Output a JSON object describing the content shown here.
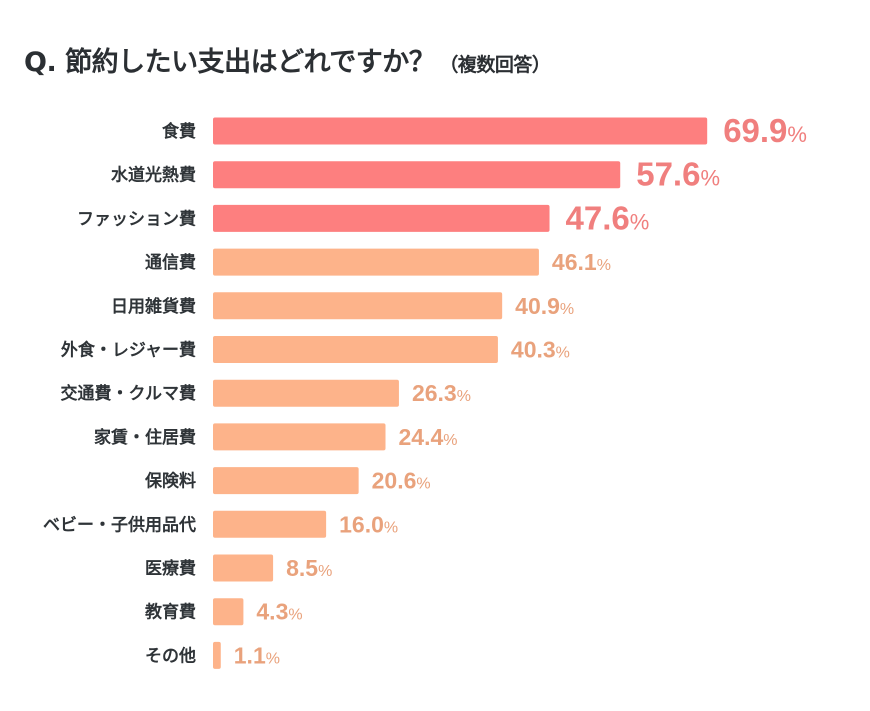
{
  "chart_data": {
    "type": "bar",
    "orientation": "horizontal",
    "title": "Q. 節約したい支出はどれですか？",
    "subtitle": "（複数回答）",
    "categories": [
      "食費",
      "水道光熱費",
      "ファッション費",
      "通信費",
      "日用雑貨費",
      "外食・レジャー費",
      "交通費・クルマ費",
      "家賃・住居費",
      "保険料",
      "ベビー・子供用品代",
      "医療費",
      "教育費",
      "その他"
    ],
    "values": [
      69.9,
      57.6,
      47.6,
      46.1,
      40.9,
      40.3,
      26.3,
      24.4,
      20.6,
      16.0,
      8.5,
      4.3,
      1.1
    ],
    "value_labels": [
      "69.9",
      "57.6",
      "47.6",
      "46.1",
      "40.9",
      "40.3",
      "26.3",
      "24.4",
      "20.6",
      "16.0",
      "8.5",
      "4.3",
      "1.1"
    ],
    "unit": "%",
    "highlight_top": 3,
    "colors": {
      "highlight_bar": "#FD7F7F",
      "highlight_text": "#F07F7E",
      "bar": "#FDB38A",
      "text": "#E9A27C",
      "category_text": "#2F3438"
    },
    "xlim": [
      0,
      100
    ],
    "grid": false,
    "legend": "none"
  }
}
